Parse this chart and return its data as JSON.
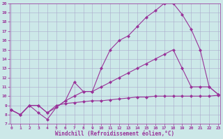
{
  "xlabel": "Windchill (Refroidissement éolien,°C)",
  "line1_x": [
    0,
    1,
    2,
    3,
    4,
    5,
    6,
    7,
    8,
    9,
    10,
    11,
    12,
    13,
    14,
    15,
    16,
    17,
    18,
    19,
    20,
    21,
    22,
    23
  ],
  "line1_y": [
    8.5,
    8.0,
    9.0,
    8.2,
    7.5,
    8.8,
    9.5,
    11.5,
    10.5,
    10.5,
    13.0,
    15.0,
    16.0,
    16.5,
    17.5,
    18.5,
    19.2,
    20.0,
    20.0,
    18.8,
    17.2,
    15.0,
    11.0,
    10.2
  ],
  "line2_x": [
    0,
    1,
    2,
    3,
    4,
    5,
    6,
    7,
    8,
    9,
    10,
    11,
    12,
    13,
    14,
    15,
    16,
    17,
    18,
    19,
    20,
    21,
    22,
    23
  ],
  "line2_y": [
    8.5,
    8.0,
    9.0,
    9.0,
    8.2,
    8.8,
    9.5,
    10.0,
    10.5,
    10.5,
    11.0,
    11.5,
    12.0,
    12.5,
    13.0,
    13.5,
    14.0,
    14.5,
    15.0,
    13.0,
    11.0,
    11.0,
    11.0,
    10.2
  ],
  "line3_x": [
    0,
    1,
    2,
    3,
    4,
    5,
    6,
    7,
    8,
    9,
    10,
    11,
    12,
    13,
    14,
    15,
    16,
    17,
    18,
    19,
    20,
    21,
    22,
    23
  ],
  "line3_y": [
    8.5,
    8.0,
    9.0,
    9.0,
    8.2,
    9.0,
    9.2,
    9.3,
    9.4,
    9.5,
    9.5,
    9.6,
    9.7,
    9.8,
    9.9,
    9.9,
    10.0,
    10.0,
    10.0,
    10.0,
    10.0,
    10.0,
    10.0,
    10.1
  ],
  "line_color": "#993399",
  "marker": "D",
  "markersize": 2,
  "xlim": [
    0,
    23
  ],
  "ylim": [
    7,
    20
  ],
  "xticks": [
    0,
    1,
    2,
    3,
    4,
    5,
    6,
    7,
    8,
    9,
    10,
    11,
    12,
    13,
    14,
    15,
    16,
    17,
    18,
    19,
    20,
    21,
    22,
    23
  ],
  "yticks": [
    7,
    8,
    9,
    10,
    11,
    12,
    13,
    14,
    15,
    16,
    17,
    18,
    19,
    20
  ],
  "bg_color": "#cce8e8",
  "grid_color": "#aaaacc",
  "tick_fontsize": 4.5,
  "label_fontsize": 5.5
}
